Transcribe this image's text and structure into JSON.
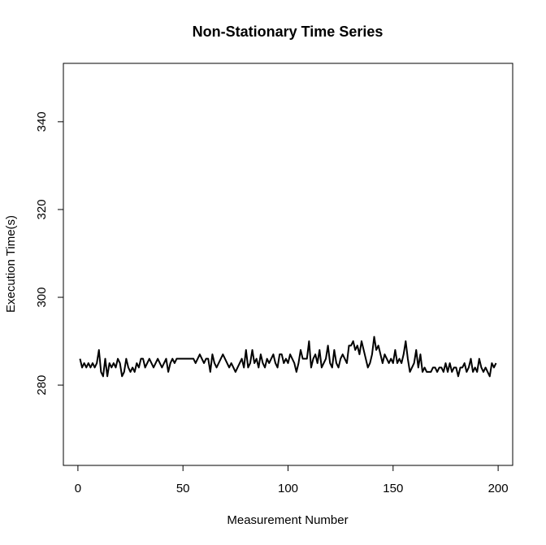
{
  "chart_data": {
    "type": "line",
    "title": "Non-Stationary Time Series",
    "x_label": "Measurement Number",
    "y_label": "Execution Time(s)",
    "color": "#000000",
    "x": [
      1,
      2,
      3,
      4,
      5,
      6,
      7,
      8,
      9,
      10,
      11,
      12,
      13,
      14,
      15,
      16,
      17,
      18,
      19,
      20,
      21,
      22,
      23,
      24,
      25,
      26,
      27,
      28,
      29,
      30,
      31,
      32,
      33,
      34,
      35,
      36,
      37,
      38,
      39,
      40,
      41,
      42,
      43,
      44,
      45,
      46,
      47,
      48,
      49,
      50,
      51,
      52,
      53,
      54,
      55,
      56,
      57,
      58,
      59,
      60,
      61,
      62,
      63,
      64,
      65,
      66,
      67,
      68,
      69,
      70,
      71,
      72,
      73,
      74,
      75,
      76,
      77,
      78,
      79,
      80,
      81,
      82,
      83,
      84,
      85,
      86,
      87,
      88,
      89,
      90,
      91,
      92,
      93,
      94,
      95,
      96,
      97,
      98,
      99,
      100,
      101,
      102,
      103,
      104,
      105,
      106,
      107,
      108,
      109,
      110,
      111,
      112,
      113,
      114,
      115,
      116,
      117,
      118,
      119,
      120,
      121,
      122,
      123,
      124,
      125,
      126,
      127,
      128,
      129,
      130,
      131,
      132,
      133,
      134,
      135,
      136,
      137,
      138,
      139,
      140,
      141,
      142,
      143,
      144,
      145,
      146,
      147,
      148,
      149,
      150,
      151,
      152,
      153,
      154,
      155,
      156,
      157,
      158,
      159,
      160,
      161,
      162,
      163,
      164,
      165,
      166,
      167,
      168,
      169,
      170,
      171,
      172,
      173,
      174,
      175,
      176,
      177,
      178,
      179,
      180,
      181,
      182,
      183,
      184,
      185,
      186,
      187,
      188,
      189,
      190,
      191,
      192,
      193,
      194,
      195,
      196,
      197,
      198,
      199
    ],
    "values": [
      286,
      284,
      285,
      284,
      285,
      284,
      285,
      284,
      285,
      288,
      283,
      282,
      286,
      282,
      285,
      284,
      285,
      284,
      286,
      285,
      282,
      283,
      286,
      284,
      283,
      284,
      283,
      285,
      284,
      286,
      286,
      284,
      285,
      286,
      285,
      284,
      285,
      286,
      285,
      284,
      285,
      286,
      283,
      285,
      286,
      285,
      286,
      286,
      286,
      286,
      286,
      286,
      286,
      286,
      286,
      285,
      286,
      287,
      286,
      285,
      286,
      286,
      283,
      287,
      285,
      284,
      285,
      286,
      287,
      286,
      285,
      284,
      285,
      284,
      283,
      284,
      285,
      286,
      284,
      288,
      284,
      285,
      288,
      285,
      286,
      284,
      287,
      285,
      284,
      286,
      285,
      286,
      287,
      285,
      284,
      287,
      287,
      285,
      286,
      285,
      287,
      286,
      285,
      283,
      285,
      288,
      286,
      286,
      286,
      290,
      284,
      286,
      287,
      285,
      288,
      284,
      285,
      286,
      289,
      285,
      284,
      288,
      285,
      284,
      286,
      287,
      286,
      285,
      289,
      289,
      290,
      288,
      289,
      287,
      290,
      288,
      286,
      284,
      285,
      287,
      291,
      288,
      289,
      287,
      285,
      287,
      286,
      285,
      286,
      285,
      288,
      285,
      286,
      285,
      287,
      290,
      286,
      283,
      284,
      285,
      288,
      284,
      287,
      283,
      284,
      283,
      283,
      283,
      284,
      284,
      283,
      284,
      284,
      283,
      285,
      283,
      285,
      283,
      284,
      284,
      282,
      284,
      284,
      285,
      283,
      284,
      286,
      283,
      284,
      283,
      286,
      284,
      283,
      284,
      283,
      282,
      285,
      284,
      285
    ],
    "xlim": [
      -6.92,
      206.92
    ],
    "ylim": [
      261.7,
      353.3
    ],
    "xticks": [
      0,
      50,
      100,
      150,
      200
    ],
    "yticks": [
      280,
      300,
      320,
      340
    ]
  }
}
